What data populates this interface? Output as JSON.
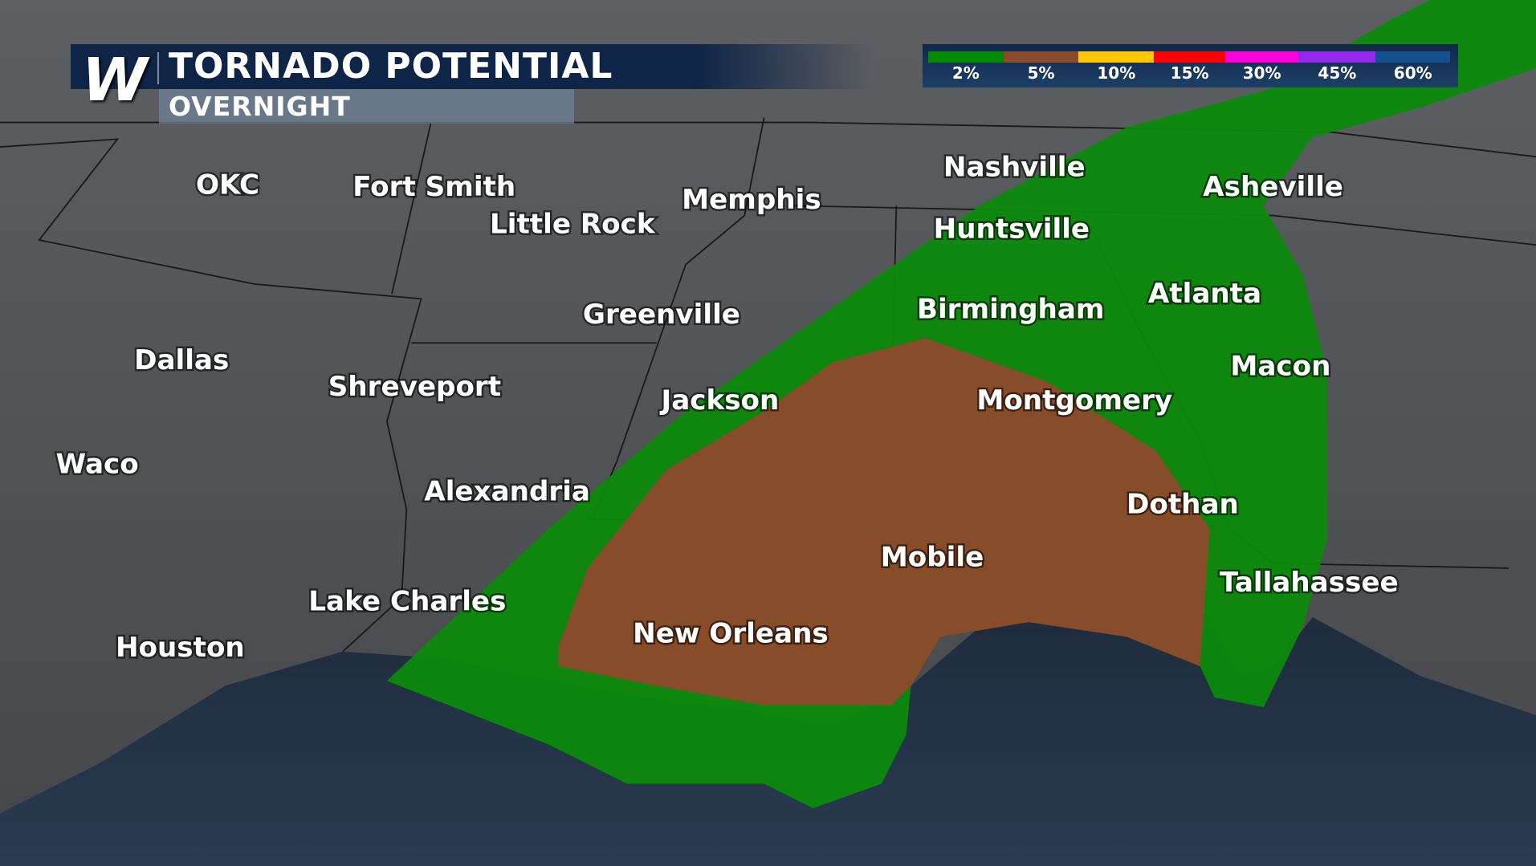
{
  "header": {
    "logo": "W",
    "title": "TORNADO POTENTIAL",
    "subtitle": "OVERNIGHT"
  },
  "legend": [
    {
      "label": "2%",
      "color": "#008a00"
    },
    {
      "label": "5%",
      "color": "#8b4a2a"
    },
    {
      "label": "10%",
      "color": "#ffc800"
    },
    {
      "label": "15%",
      "color": "#ff0000"
    },
    {
      "label": "30%",
      "color": "#ff00dd"
    },
    {
      "label": "45%",
      "color": "#952aee"
    },
    {
      "label": "60%",
      "color": "#13508e"
    }
  ],
  "risk_areas": [
    {
      "level": "2%",
      "color": "#0c8a0c"
    },
    {
      "level": "5%",
      "color": "#8b4a2a"
    }
  ],
  "cities": [
    "OKC",
    "Fort Smith",
    "Little Rock",
    "Memphis",
    "Nashville",
    "Asheville",
    "Huntsville",
    "Birmingham",
    "Atlanta",
    "Greenville",
    "Macon",
    "Dallas",
    "Shreveport",
    "Jackson",
    "Montgomery",
    "Waco",
    "Alexandria",
    "Dothan",
    "Mobile",
    "Tallahassee",
    "Lake Charles",
    "New Orleans",
    "Houston"
  ]
}
